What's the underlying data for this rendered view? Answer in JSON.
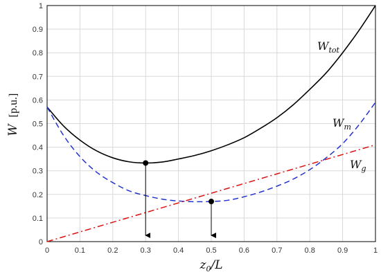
{
  "chart_data": {
    "type": "line",
    "title": "",
    "xlabel": {
      "base": "z",
      "sub": "0",
      "rest": "/L"
    },
    "ylabel": {
      "base": "W",
      "unit": "[p.u.]"
    },
    "xlim": [
      0,
      1
    ],
    "ylim": [
      0,
      1
    ],
    "grid": true,
    "x_ticks": [
      "0",
      "0.1",
      "0.2",
      "0.3",
      "0.4",
      "0.5",
      "0.6",
      "0.7",
      "0.8",
      "0.9",
      "1"
    ],
    "y_ticks": [
      "0",
      "0.1",
      "0.2",
      "0.3",
      "0.4",
      "0.5",
      "0.6",
      "0.7",
      "0.8",
      "0.9",
      "1"
    ],
    "x": [
      0,
      0.05,
      0.1,
      0.15,
      0.2,
      0.25,
      0.3,
      0.35,
      0.4,
      0.45,
      0.5,
      0.55,
      0.6,
      0.65,
      0.7,
      0.75,
      0.8,
      0.85,
      0.9,
      0.95,
      1.0
    ],
    "series": [
      {
        "name": "W_tot",
        "label": {
          "base": "W",
          "sub": "tot"
        },
        "color": "#000000",
        "style": "solid",
        "values": [
          0.57,
          0.49,
          0.43,
          0.385,
          0.355,
          0.338,
          0.333,
          0.337,
          0.35,
          0.365,
          0.385,
          0.41,
          0.44,
          0.48,
          0.525,
          0.58,
          0.645,
          0.715,
          0.8,
          0.895,
          1.0
        ]
      },
      {
        "name": "W_m",
        "label": {
          "base": "W",
          "sub": "m"
        },
        "color": "#2233cc",
        "style": "dashed",
        "values": [
          0.57,
          0.45,
          0.36,
          0.295,
          0.25,
          0.215,
          0.195,
          0.18,
          0.172,
          0.169,
          0.17,
          0.175,
          0.19,
          0.21,
          0.235,
          0.265,
          0.305,
          0.355,
          0.415,
          0.495,
          0.59
        ]
      },
      {
        "name": "W_g",
        "label": {
          "base": "W",
          "sub": "g"
        },
        "color": "#dd1111",
        "style": "dash-dot",
        "values": [
          0.0,
          0.0205,
          0.041,
          0.0615,
          0.082,
          0.1025,
          0.123,
          0.1435,
          0.164,
          0.1845,
          0.205,
          0.2255,
          0.246,
          0.2665,
          0.287,
          0.3075,
          0.328,
          0.3485,
          0.369,
          0.3895,
          0.41
        ]
      }
    ],
    "markers": [
      {
        "x": 0.3,
        "y": 0.333,
        "arrow_to_axis": true
      },
      {
        "x": 0.5,
        "y": 0.17,
        "arrow_to_axis": true
      }
    ]
  }
}
